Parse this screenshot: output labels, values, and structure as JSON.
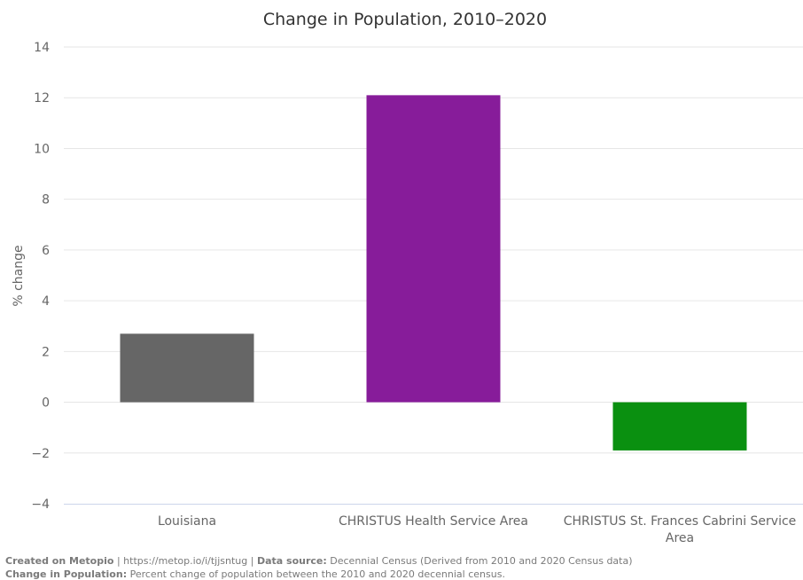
{
  "chart_data": {
    "type": "bar",
    "title": "Change in Population, 2010–2020",
    "ylabel": "% change",
    "xlabel": "",
    "categories": [
      "Louisiana",
      "CHRISTUS Health Service Area",
      "CHRISTUS St. Frances Cabrini Service Area"
    ],
    "category_lines": [
      [
        "Louisiana"
      ],
      [
        "CHRISTUS Health Service Area"
      ],
      [
        "CHRISTUS St. Frances Cabrini Service",
        "Area"
      ]
    ],
    "values": [
      2.7,
      12.1,
      -1.9
    ],
    "colors": [
      "#666666",
      "#871c9a",
      "#0a9010"
    ],
    "ylim": [
      -4,
      14
    ],
    "yticks": [
      "−4",
      "−2",
      "0",
      "2",
      "4",
      "6",
      "8",
      "10",
      "12",
      "14"
    ],
    "ytick_values": [
      -4,
      -2,
      0,
      2,
      4,
      6,
      8,
      10,
      12,
      14
    ],
    "grid": true,
    "legend": "none"
  },
  "footer": {
    "created_label": "Created on Metopio",
    "sep1": " | ",
    "url": "https://metop.io/i/tjjsntug",
    "sep2": " | ",
    "source_label": "Data source:",
    "source_text": " Decennial Census (Derived from 2010 and 2020 Census data)",
    "metric_label": "Change in Population:",
    "metric_text": " Percent change of population between the 2010 and 2020 decennial census."
  }
}
